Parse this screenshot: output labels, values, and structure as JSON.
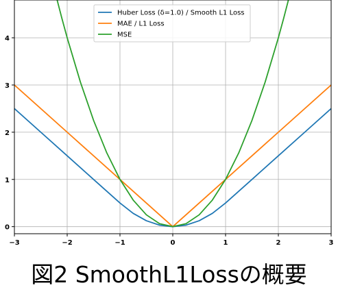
{
  "chart_data": {
    "type": "line",
    "title": "",
    "xlabel": "",
    "ylabel": "",
    "xlim": [
      -3,
      3
    ],
    "ylim": [
      -0.15,
      4.8
    ],
    "xticks": [
      -3,
      -2,
      -1,
      0,
      1,
      2,
      3
    ],
    "yticks": [
      0,
      1,
      2,
      3,
      4
    ],
    "grid": true,
    "legend_position": "top-center",
    "series": [
      {
        "name": "Huber Loss (δ=1.0) / Smooth L1 Loss",
        "color": "#1f77b4",
        "x": [
          -3,
          -2.5,
          -2,
          -1.5,
          -1,
          -0.75,
          -0.5,
          -0.25,
          0,
          0.25,
          0.5,
          0.75,
          1,
          1.5,
          2,
          2.5,
          3
        ],
        "y": [
          2.5,
          2.0,
          1.5,
          1.0,
          0.5,
          0.281,
          0.125,
          0.031,
          0,
          0.031,
          0.125,
          0.281,
          0.5,
          1.0,
          1.5,
          2.0,
          2.5
        ]
      },
      {
        "name": "MAE / L1 Loss",
        "color": "#ff7f0e",
        "x": [
          -3,
          -2,
          -1,
          0,
          1,
          2,
          3
        ],
        "y": [
          3,
          2,
          1,
          0,
          1,
          2,
          3
        ]
      },
      {
        "name": "MSE",
        "color": "#2ca02c",
        "x": [
          -2.2,
          -2.1,
          -2.0,
          -1.75,
          -1.5,
          -1.25,
          -1.0,
          -0.75,
          -0.5,
          -0.25,
          0,
          0.25,
          0.5,
          0.75,
          1.0,
          1.25,
          1.5,
          1.75,
          2.0,
          2.1,
          2.2
        ],
        "y": [
          4.84,
          4.41,
          4.0,
          3.0625,
          2.25,
          1.5625,
          1.0,
          0.5625,
          0.25,
          0.0625,
          0,
          0.0625,
          0.25,
          0.5625,
          1.0,
          1.5625,
          2.25,
          3.0625,
          4.0,
          4.41,
          4.84
        ]
      }
    ]
  },
  "caption": "図2 SmoothL1Lossの概要"
}
